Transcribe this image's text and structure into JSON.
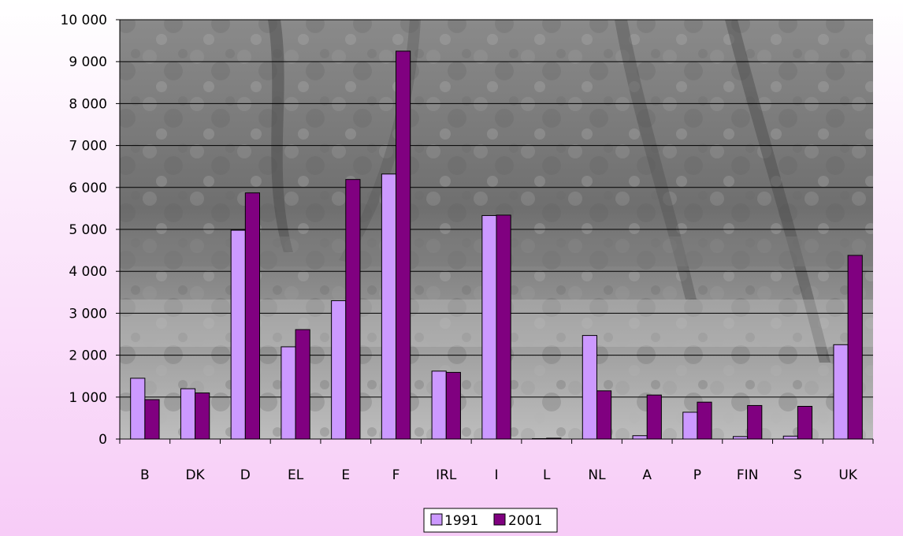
{
  "chart_data": {
    "type": "bar",
    "title": "",
    "xlabel": "",
    "ylabel": "",
    "categories": [
      "B",
      "DK",
      "D",
      "EL",
      "E",
      "F",
      "IRL",
      "I",
      "L",
      "NL",
      "A",
      "P",
      "FIN",
      "S",
      "UK"
    ],
    "series": [
      {
        "name": "1991",
        "color": "#cc99ff",
        "values": [
          1450,
          1200,
          4980,
          2200,
          3300,
          6320,
          1620,
          5330,
          10,
          2470,
          80,
          640,
          60,
          70,
          2250
        ]
      },
      {
        "name": "2001",
        "color": "#800080",
        "values": [
          940,
          1100,
          5870,
          2610,
          6190,
          9250,
          1590,
          5340,
          20,
          1150,
          1050,
          880,
          800,
          780,
          4380
        ]
      }
    ],
    "ylim": [
      0,
      10000
    ],
    "yticks": [
      0,
      1000,
      2000,
      3000,
      4000,
      5000,
      6000,
      7000,
      8000,
      9000,
      10000
    ],
    "ytick_labels": [
      "0",
      "1 000",
      "2 000",
      "3 000",
      "4 000",
      "5 000",
      "6 000",
      "7 000",
      "8 000",
      "9 000",
      "10 000"
    ],
    "grid": true,
    "legend_position": "bottom",
    "plot_background": "grayscale photo of a riverside forest",
    "page_background": "white to pink gradient"
  }
}
